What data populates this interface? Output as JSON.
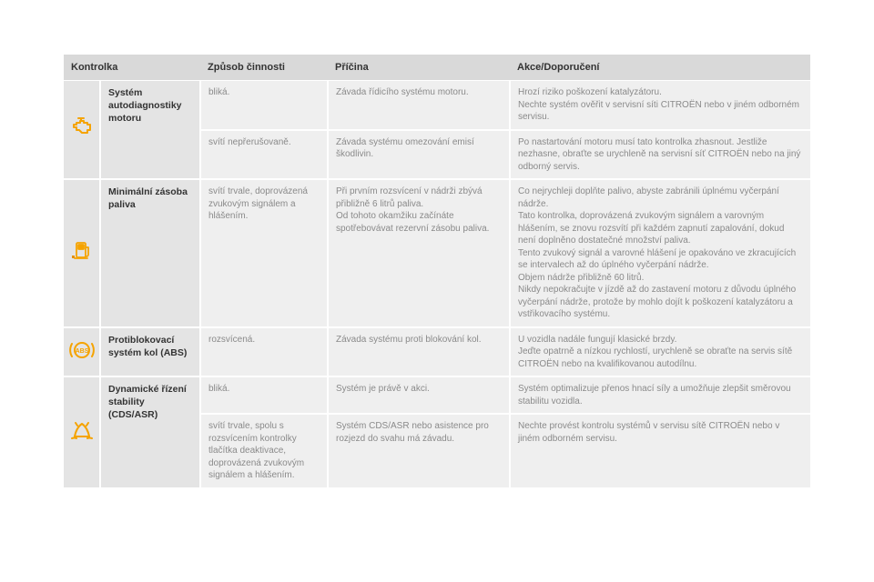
{
  "palette": {
    "header_bg": "#d9d9d9",
    "cell_bg": "#efefef",
    "name_bg": "#e4e4e4",
    "text_dark": "#333333",
    "text_muted": "#8a8a8a",
    "icon_amber": "#f5a300",
    "icon_amber_dark": "#e58f00",
    "page_bg": "#ffffff"
  },
  "columns": {
    "indicator": "Kontrolka",
    "mode": "Způsob činnosti",
    "cause": "Příčina",
    "action": "Akce/Doporučení"
  },
  "rows": [
    {
      "icon": "engine",
      "name": "Systém autodiagnostiky motoru",
      "sub": [
        {
          "mode": "bliká.",
          "cause": "Závada řídicího systému motoru.",
          "action": "Hrozí riziko poškození katalyzátoru.\nNechte systém ověřit v servisní síti CITROËN nebo v jiném odborném servisu."
        },
        {
          "mode": "svítí nepřerušovaně.",
          "cause": "Závada systému omezování emisí škodlivin.",
          "action": "Po nastartování motoru musí tato kontrolka zhasnout. Jestliže nezhasne, obraťte se urychleně na servisní síť CITROËN nebo na jiný odborný servis."
        }
      ]
    },
    {
      "icon": "fuel",
      "name": "Minimální zásoba paliva",
      "sub": [
        {
          "mode": "svítí trvale, doprovázená zvukovým signálem a hlášením.",
          "cause": "Při prvním rozsvícení v nádrži zbývá přibližně 6 litrů paliva.\nOd tohoto okamžiku začínáte spotřebovávat rezervní zásobu paliva.",
          "action": "Co nejrychleji doplňte palivo, abyste zabránili úplnému vyčerpání nádrže.\nTato kontrolka, doprovázená zvukovým signálem a varovným hlášením, se znovu rozsvítí při každém zapnutí zapalování, dokud není doplněno dostatečné množství paliva.\nTento zvukový signál a varovné hlášení je opakováno ve zkracujících se intervalech až do úplného vyčerpání nádrže.\nObjem nádrže přibližně 60 litrů.\nNikdy nepokračujte v jízdě až do zastavení motoru z důvodu úplného vyčerpání nádrže, protože by mohlo dojít k poškození katalyzátoru a vstřikovacího systému."
        }
      ]
    },
    {
      "icon": "abs",
      "name": "Protiblokovací systém kol (ABS)",
      "sub": [
        {
          "mode": "rozsvícená.",
          "cause": "Závada systému proti blokování kol.",
          "action": "U vozidla nadále fungují klasické brzdy.\nJeďte opatrně a nízkou rychlostí, urychleně se obraťte na servis sítě CITROËN nebo na kvalifikovanou autodílnu."
        }
      ]
    },
    {
      "icon": "esc",
      "name": "Dynamické řízení stability (CDS/ASR)",
      "sub": [
        {
          "mode": "bliká.",
          "cause": "Systém je právě v akci.",
          "action": "Systém optimalizuje přenos hnací síly a umožňuje zlepšit směrovou stabilitu vozidla."
        },
        {
          "mode": "svítí trvale, spolu s rozsvícením kontrolky tlačítka deaktivace, doprovázená zvukovým signálem a hlášením.",
          "cause": "Systém CDS/ASR nebo asistence pro rozjezd do svahu má závadu.",
          "action": "Nechte provést kontrolu systémů v servisu sítě CITROËN nebo v jiném odborném servisu."
        }
      ]
    }
  ]
}
